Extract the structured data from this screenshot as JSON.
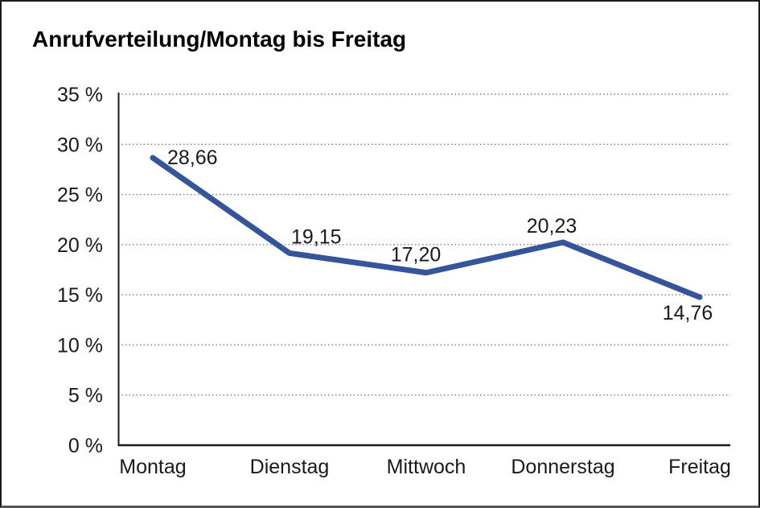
{
  "window": {
    "background": "#ffffff",
    "frame_border_color": "#1c1c1c"
  },
  "chart": {
    "title": "Anrufverteilung/Montag bis Freitag"
  },
  "chart_data": {
    "type": "line",
    "title": "Anrufverteilung/Montag bis Freitag",
    "categories": [
      "Montag",
      "Dienstag",
      "Mittwoch",
      "Donnerstag",
      "Freitag"
    ],
    "values": [
      28.66,
      19.15,
      17.2,
      20.23,
      14.76
    ],
    "value_labels": [
      "28,66",
      "19,15",
      "17,20",
      "20,23",
      "14,76"
    ],
    "xlabel": "",
    "ylabel": "",
    "ylim": [
      0,
      35
    ],
    "ytick_step": 5,
    "ytick_labels": [
      "0 %",
      "5 %",
      "10 %",
      "15 %",
      "20 %",
      "25 %",
      "30 %",
      "35 %"
    ],
    "grid": "horizontal-dotted",
    "legend_position": "none",
    "line_color": "#34549C",
    "axis_color": "#1a1a1a",
    "grid_color": "#7d7d7d",
    "text_color": "#1a1a1a"
  }
}
